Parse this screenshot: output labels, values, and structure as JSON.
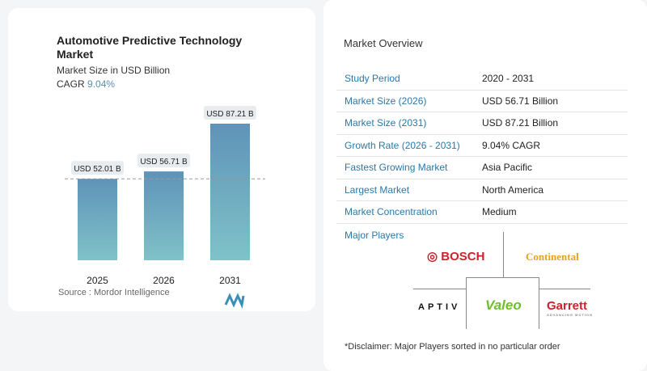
{
  "title": "Automotive Predictive Technology Market",
  "subtitle": "Market Size in USD Billion",
  "cagr_label": "CAGR",
  "cagr_value": "9.04%",
  "source": "Source :  Mordor Intelligence",
  "chart_data": {
    "type": "bar",
    "categories": [
      "2025",
      "2026",
      "2031"
    ],
    "values": [
      52.01,
      56.71,
      87.21
    ],
    "data_labels": [
      "USD 52.01 B",
      "USD 56.71 B",
      "USD 87.21 B"
    ],
    "title": "Automotive Predictive Technology Market",
    "ylabel": "",
    "xlabel": "",
    "ylim": [
      0,
      90
    ],
    "grid": false,
    "bar_color_top": "#5f93b8",
    "bar_color_bottom": "#7fc2c8"
  },
  "overview": {
    "title": "Market Overview",
    "rows": [
      {
        "label": "Study Period",
        "value": "2020 - 2031"
      },
      {
        "label": "Market Size (2026)",
        "value": "USD 56.71 Billion"
      },
      {
        "label": "Market Size (2031)",
        "value": "USD 87.21 Billion"
      },
      {
        "label": "Growth Rate (2026 - 2031)",
        "value": "9.04% CAGR"
      },
      {
        "label": "Fastest Growing Market",
        "value": "Asia Pacific"
      },
      {
        "label": "Largest Market",
        "value": "North America"
      },
      {
        "label": "Market Concentration",
        "value": "Medium"
      }
    ]
  },
  "players": {
    "title": "Major Players",
    "logos": [
      "BOSCH",
      "Continental",
      "APTIV",
      "Valeo",
      "Garrett"
    ],
    "garrett_tag": "ADVANCING MOTION"
  },
  "disclaimer": "*Disclaimer: Major Players sorted in no particular order"
}
